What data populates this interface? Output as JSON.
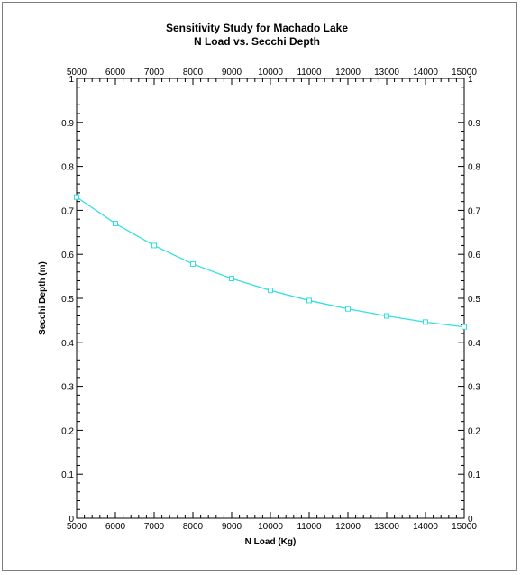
{
  "chart_data": {
    "type": "line",
    "title": "Sensitivity Study for Machado Lake",
    "subtitle": "N Load vs. Secchi Depth",
    "xlabel": "N Load (Kg)",
    "ylabel": "Secchi Depth (m)",
    "xlim": [
      5000,
      15000
    ],
    "ylim": [
      0,
      1
    ],
    "x_ticks": [
      "5000",
      "6000",
      "7000",
      "8000",
      "9000",
      "10000",
      "11000",
      "12000",
      "13000",
      "14000",
      "15000"
    ],
    "y_ticks": [
      "0",
      "0.1",
      "0.2",
      "0.3",
      "0.4",
      "0.5",
      "0.6",
      "0.7",
      "0.8",
      "0.9",
      "1"
    ],
    "grid": false,
    "series": [
      {
        "color": "#33e0e0",
        "x": [
          5000,
          6000,
          7000,
          8000,
          9000,
          10000,
          11000,
          12000,
          13000,
          14000,
          15000
        ],
        "y": [
          0.73,
          0.67,
          0.62,
          0.578,
          0.545,
          0.518,
          0.495,
          0.476,
          0.46,
          0.446,
          0.435
        ]
      }
    ]
  }
}
